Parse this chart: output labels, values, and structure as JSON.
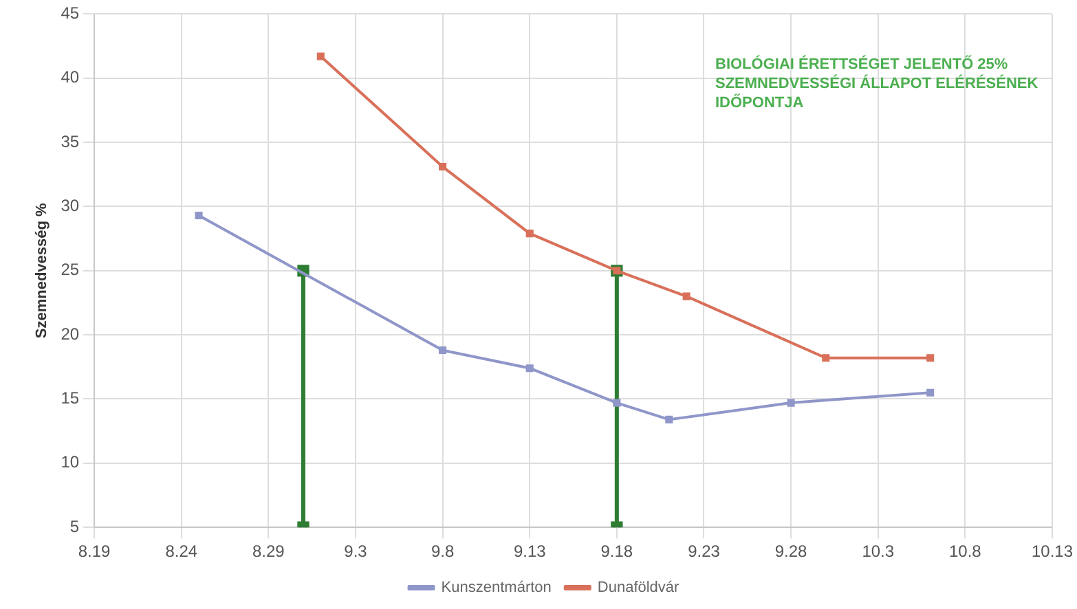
{
  "chart_data": {
    "type": "line",
    "ylabel": "Szemnedvesség %",
    "annotations": [
      "BIOLÓGIAI ÉRETTSÉGET JELENTŐ 25% SZEMNEDVESSÉGI ÁLLAPOT ELÉRÉSÉNEK IDŐPONTJA"
    ],
    "series": [
      {
        "name": "Kunszentmárton",
        "color": "#8f96c9",
        "x": [
          "--08-25",
          "--09-08",
          "--09-13",
          "--09-18",
          "--09-21",
          "--09-28",
          "--10-06"
        ],
        "values": [
          29.3,
          18.8,
          17.4,
          14.7,
          13.4,
          14.7,
          15.5
        ]
      },
      {
        "name": "Dunaföldvár",
        "color": "#d9705a",
        "x": [
          "--09-01",
          "--09-08",
          "--09-13",
          "--09-18",
          "--09-22",
          "--09-30",
          "--10-06"
        ],
        "values": [
          41.7,
          33.1,
          27.9,
          25,
          23,
          18.2,
          18.2
        ]
      },
      {
        "color": "#2e7d32",
        "x": [
          "--08-31",
          "--08-31"
        ],
        "values": [
          5,
          25
        ]
      },
      {
        "color": "#2e7d32",
        "x": [
          "--09-18",
          "--09-18"
        ],
        "values": [
          5,
          25
        ]
      }
    ],
    "xlim": [
      "--08-19",
      "--10-13"
    ],
    "xticks": [
      {
        "value": "--08-19",
        "label": "8.19"
      },
      {
        "value": "--08-24",
        "label": "8.24"
      },
      {
        "value": "--08-29",
        "label": "8.29"
      },
      {
        "value": "--09-03",
        "label": "9.3"
      },
      {
        "value": "--09-08",
        "label": "9.8"
      },
      {
        "value": "--09-13",
        "label": "9.13"
      },
      {
        "value": "--09-18",
        "label": "9.18"
      },
      {
        "value": "--09-23",
        "label": "9.23"
      },
      {
        "value": "--09-28",
        "label": "9.28"
      },
      {
        "value": "--10-03",
        "label": "10.3"
      },
      {
        "value": "--10-08",
        "label": "10.8"
      },
      {
        "value": "--10-13",
        "label": "10.13"
      }
    ],
    "ylim": [
      5,
      45
    ],
    "yticks": [
      5,
      10,
      15,
      20,
      25,
      30,
      35,
      40,
      45
    ],
    "grid": true,
    "legend": "bottom",
    "marker": "square",
    "line_style": "solid"
  }
}
